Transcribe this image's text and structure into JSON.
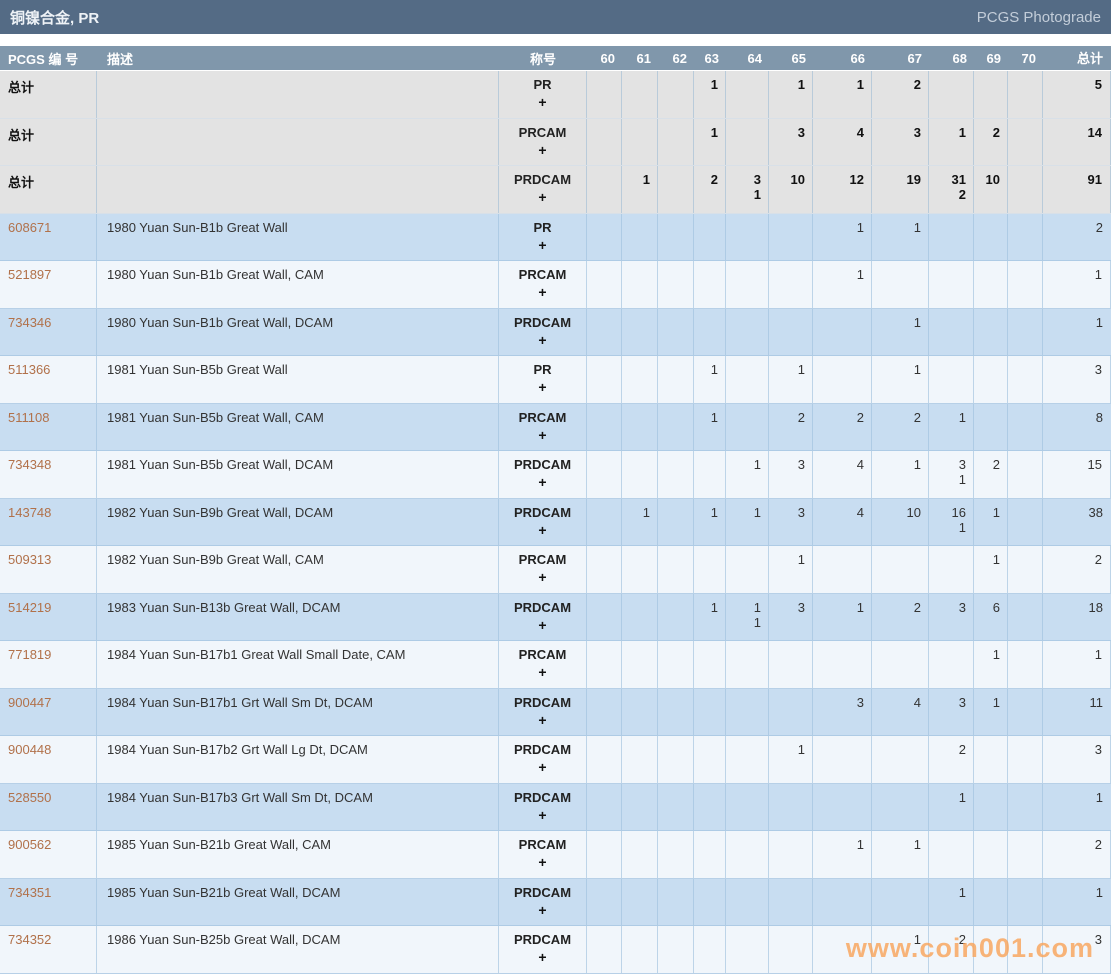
{
  "page": {
    "title": "铜镍合金, PR",
    "photograde_label": "PCGS Photograde",
    "watermark": "www.coin001.com"
  },
  "table": {
    "pcgs_col_label": "PCGS 编 号",
    "desc_col_label": "描述",
    "designation_col_label": "称号",
    "total_col_label": "总计",
    "grade_headers": [
      "60",
      "61",
      "62",
      "63",
      "64",
      "65",
      "66",
      "67",
      "68",
      "69",
      "70"
    ],
    "rows": [
      {
        "type": "summary",
        "shade": "gray",
        "pcgs": "总计",
        "desc": "",
        "designation": "PR",
        "plus": "+",
        "grades": [
          "",
          "",
          "",
          "1",
          "",
          "1",
          "1",
          "2",
          "",
          "",
          ""
        ],
        "total": "5"
      },
      {
        "type": "summary",
        "shade": "gray",
        "pcgs": "总计",
        "desc": "",
        "designation": "PRCAM",
        "plus": "+",
        "grades": [
          "",
          "",
          "",
          "1",
          "",
          "3",
          "4",
          "3",
          "1",
          "2",
          ""
        ],
        "total": "14"
      },
      {
        "type": "summary",
        "shade": "gray",
        "pcgs": "总计",
        "desc": "",
        "designation": "PRDCAM",
        "plus": "+",
        "grades": [
          "",
          "1",
          "",
          "2",
          [
            "3",
            "1"
          ],
          "10",
          "12",
          "19",
          [
            "31",
            "2"
          ],
          "10",
          ""
        ],
        "total": "91"
      },
      {
        "type": "data",
        "shade": "blue",
        "pcgs": "608671",
        "desc": "1980 Yuan Sun-B1b Great Wall",
        "designation": "PR",
        "plus": "+",
        "grades": [
          "",
          "",
          "",
          "",
          "",
          "",
          "1",
          "1",
          "",
          "",
          ""
        ],
        "total": "2"
      },
      {
        "type": "data",
        "shade": "light",
        "pcgs": "521897",
        "desc": "1980 Yuan Sun-B1b Great Wall, CAM",
        "designation": "PRCAM",
        "plus": "+",
        "grades": [
          "",
          "",
          "",
          "",
          "",
          "",
          "1",
          "",
          "",
          "",
          ""
        ],
        "total": "1"
      },
      {
        "type": "data",
        "shade": "blue",
        "pcgs": "734346",
        "desc": "1980 Yuan Sun-B1b Great Wall, DCAM",
        "designation": "PRDCAM",
        "plus": "+",
        "grades": [
          "",
          "",
          "",
          "",
          "",
          "",
          "",
          "1",
          "",
          "",
          ""
        ],
        "total": "1"
      },
      {
        "type": "data",
        "shade": "light",
        "pcgs": "511366",
        "desc": "1981 Yuan Sun-B5b Great Wall",
        "designation": "PR",
        "plus": "+",
        "grades": [
          "",
          "",
          "",
          "1",
          "",
          "1",
          "",
          "1",
          "",
          "",
          ""
        ],
        "total": "3"
      },
      {
        "type": "data",
        "shade": "blue",
        "pcgs": "511108",
        "desc": "1981 Yuan Sun-B5b Great Wall, CAM",
        "designation": "PRCAM",
        "plus": "+",
        "grades": [
          "",
          "",
          "",
          "1",
          "",
          "2",
          "2",
          "2",
          "1",
          "",
          ""
        ],
        "total": "8"
      },
      {
        "type": "data",
        "shade": "light",
        "pcgs": "734348",
        "desc": "1981 Yuan Sun-B5b Great Wall, DCAM",
        "designation": "PRDCAM",
        "plus": "+",
        "grades": [
          "",
          "",
          "",
          "",
          "1",
          "3",
          "4",
          "1",
          [
            "3",
            "1"
          ],
          "2",
          ""
        ],
        "total": "15"
      },
      {
        "type": "data",
        "shade": "blue",
        "pcgs": "143748",
        "desc": "1982 Yuan Sun-B9b Great Wall, DCAM",
        "designation": "PRDCAM",
        "plus": "+",
        "grades": [
          "",
          "1",
          "",
          "1",
          "1",
          "3",
          "4",
          "10",
          [
            "16",
            "1"
          ],
          "1",
          ""
        ],
        "total": "38"
      },
      {
        "type": "data",
        "shade": "light",
        "pcgs": "509313",
        "desc": "1982 Yuan Sun-B9b Great Wall, CAM",
        "designation": "PRCAM",
        "plus": "+",
        "grades": [
          "",
          "",
          "",
          "",
          "",
          "1",
          "",
          "",
          "",
          "1",
          ""
        ],
        "total": "2"
      },
      {
        "type": "data",
        "shade": "blue",
        "pcgs": "514219",
        "desc": "1983 Yuan Sun-B13b Great Wall, DCAM",
        "designation": "PRDCAM",
        "plus": "+",
        "grades": [
          "",
          "",
          "",
          "1",
          [
            "1",
            "1"
          ],
          "3",
          "1",
          "2",
          "3",
          "6",
          ""
        ],
        "total": "18"
      },
      {
        "type": "data",
        "shade": "light",
        "pcgs": "771819",
        "desc": "1984 Yuan Sun-B17b1 Great Wall Small Date, CAM",
        "designation": "PRCAM",
        "plus": "+",
        "grades": [
          "",
          "",
          "",
          "",
          "",
          "",
          "",
          "",
          "",
          "1",
          ""
        ],
        "total": "1"
      },
      {
        "type": "data",
        "shade": "blue",
        "pcgs": "900447",
        "desc": "1984 Yuan Sun-B17b1 Grt Wall Sm Dt, DCAM",
        "designation": "PRDCAM",
        "plus": "+",
        "grades": [
          "",
          "",
          "",
          "",
          "",
          "",
          "3",
          "4",
          "3",
          "1",
          ""
        ],
        "total": "11"
      },
      {
        "type": "data",
        "shade": "light",
        "pcgs": "900448",
        "desc": "1984 Yuan Sun-B17b2 Grt Wall Lg Dt, DCAM",
        "designation": "PRDCAM",
        "plus": "+",
        "grades": [
          "",
          "",
          "",
          "",
          "",
          "1",
          "",
          "",
          "2",
          "",
          ""
        ],
        "total": "3"
      },
      {
        "type": "data",
        "shade": "blue",
        "pcgs": "528550",
        "desc": "1984 Yuan Sun-B17b3 Grt Wall Sm Dt, DCAM",
        "designation": "PRDCAM",
        "plus": "+",
        "grades": [
          "",
          "",
          "",
          "",
          "",
          "",
          "",
          "",
          "1",
          "",
          ""
        ],
        "total": "1"
      },
      {
        "type": "data",
        "shade": "light",
        "pcgs": "900562",
        "desc": "1985 Yuan Sun-B21b Great Wall, CAM",
        "designation": "PRCAM",
        "plus": "+",
        "grades": [
          "",
          "",
          "",
          "",
          "",
          "",
          "1",
          "1",
          "",
          "",
          ""
        ],
        "total": "2"
      },
      {
        "type": "data",
        "shade": "blue",
        "pcgs": "734351",
        "desc": "1985 Yuan Sun-B21b Great Wall, DCAM",
        "designation": "PRDCAM",
        "plus": "+",
        "grades": [
          "",
          "",
          "",
          "",
          "",
          "",
          "",
          "",
          "1",
          "",
          ""
        ],
        "total": "1"
      },
      {
        "type": "data",
        "shade": "light",
        "pcgs": "734352",
        "desc": "1986 Yuan Sun-B25b Great Wall, DCAM",
        "designation": "PRDCAM",
        "plus": "+",
        "grades": [
          "",
          "",
          "",
          "",
          "",
          "",
          "",
          "1",
          "2",
          "",
          ""
        ],
        "total": "3"
      }
    ]
  }
}
